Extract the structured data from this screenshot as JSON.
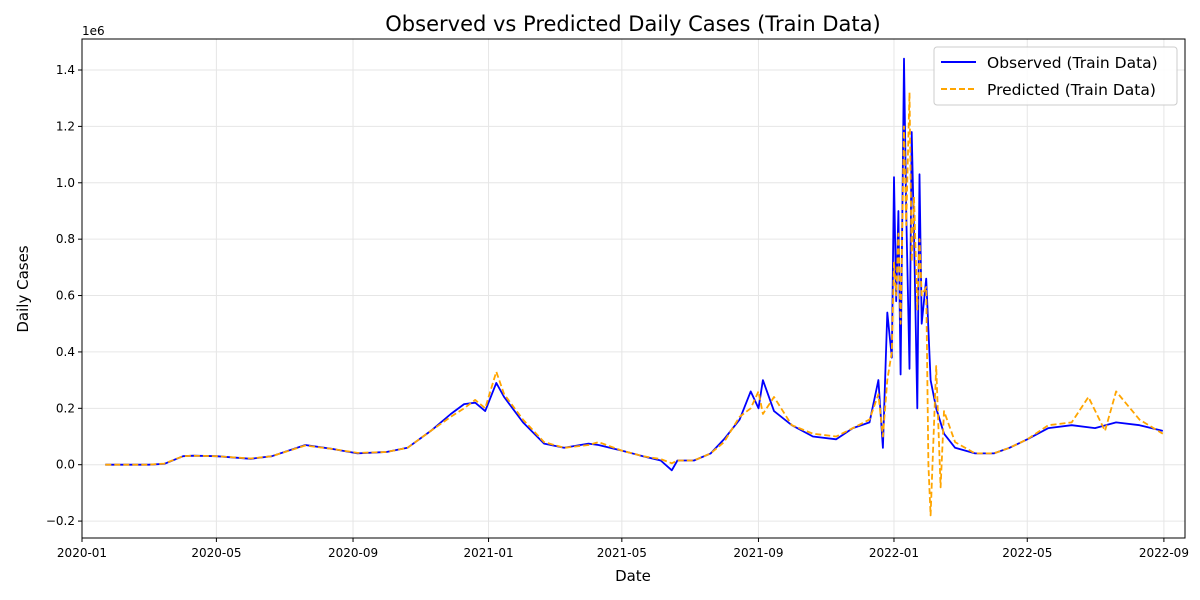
{
  "chart_data": {
    "type": "line",
    "title": "Observed vs Predicted Daily Cases (Train Data)",
    "xlabel": "Date",
    "ylabel": "Daily Cases",
    "y_offset_label": "1e6",
    "x_ticks": [
      "2020-01",
      "2020-05",
      "2020-09",
      "2021-01",
      "2021-05",
      "2021-09",
      "2022-01",
      "2022-05",
      "2022-09"
    ],
    "y_ticks": [
      -0.2,
      0.0,
      0.2,
      0.4,
      0.6,
      0.8,
      1.0,
      1.2,
      1.4
    ],
    "y_tick_labels": [
      "−0.2",
      "0.0",
      "0.2",
      "0.4",
      "0.6",
      "0.8",
      "1.0",
      "1.2",
      "1.4"
    ],
    "ylim": [
      -0.26,
      1.51
    ],
    "xlim": [
      "2020-01-01",
      "2022-09-20"
    ],
    "grid": true,
    "legend_position": "top-right",
    "colors": {
      "observed": "#0000ff",
      "predicted": "#ffa500"
    },
    "series": [
      {
        "name": "Observed (Train Data)",
        "style": "solid",
        "points": [
          [
            "2020-01-22",
            0.0
          ],
          [
            "2020-03-01",
            0.0
          ],
          [
            "2020-03-15",
            0.003
          ],
          [
            "2020-04-01",
            0.03
          ],
          [
            "2020-04-10",
            0.032
          ],
          [
            "2020-05-01",
            0.03
          ],
          [
            "2020-06-01",
            0.021
          ],
          [
            "2020-06-20",
            0.03
          ],
          [
            "2020-07-20",
            0.07
          ],
          [
            "2020-08-15",
            0.055
          ],
          [
            "2020-09-05",
            0.04
          ],
          [
            "2020-10-01",
            0.045
          ],
          [
            "2020-10-20",
            0.06
          ],
          [
            "2020-11-10",
            0.12
          ],
          [
            "2020-11-28",
            0.18
          ],
          [
            "2020-12-10",
            0.215
          ],
          [
            "2020-12-20",
            0.22
          ],
          [
            "2020-12-29",
            0.19
          ],
          [
            "2021-01-08",
            0.29
          ],
          [
            "2021-01-15",
            0.24
          ],
          [
            "2021-02-01",
            0.15
          ],
          [
            "2021-02-20",
            0.075
          ],
          [
            "2021-03-10",
            0.06
          ],
          [
            "2021-04-01",
            0.075
          ],
          [
            "2021-04-10",
            0.07
          ],
          [
            "2021-05-01",
            0.05
          ],
          [
            "2021-05-20",
            0.03
          ],
          [
            "2021-06-05",
            0.015
          ],
          [
            "2021-06-15",
            -0.02
          ],
          [
            "2021-06-20",
            0.015
          ],
          [
            "2021-07-05",
            0.015
          ],
          [
            "2021-07-20",
            0.04
          ],
          [
            "2021-08-01",
            0.09
          ],
          [
            "2021-08-15",
            0.16
          ],
          [
            "2021-08-25",
            0.26
          ],
          [
            "2021-09-01",
            0.2
          ],
          [
            "2021-09-05",
            0.3
          ],
          [
            "2021-09-15",
            0.19
          ],
          [
            "2021-10-01",
            0.14
          ],
          [
            "2021-10-20",
            0.1
          ],
          [
            "2021-11-10",
            0.09
          ],
          [
            "2021-11-25",
            0.13
          ],
          [
            "2021-12-10",
            0.15
          ],
          [
            "2021-12-18",
            0.3
          ],
          [
            "2021-12-22",
            0.06
          ],
          [
            "2021-12-26",
            0.54
          ],
          [
            "2021-12-30",
            0.38
          ],
          [
            "2022-01-01",
            1.02
          ],
          [
            "2022-01-03",
            0.58
          ],
          [
            "2022-01-05",
            0.9
          ],
          [
            "2022-01-07",
            0.32
          ],
          [
            "2022-01-10",
            1.44
          ],
          [
            "2022-01-12",
            0.9
          ],
          [
            "2022-01-15",
            0.34
          ],
          [
            "2022-01-17",
            1.18
          ],
          [
            "2022-01-19",
            0.82
          ],
          [
            "2022-01-22",
            0.2
          ],
          [
            "2022-01-24",
            1.03
          ],
          [
            "2022-01-26",
            0.5
          ],
          [
            "2022-01-30",
            0.66
          ],
          [
            "2022-02-03",
            0.3
          ],
          [
            "2022-02-08",
            0.2
          ],
          [
            "2022-02-15",
            0.11
          ],
          [
            "2022-02-25",
            0.06
          ],
          [
            "2022-03-15",
            0.04
          ],
          [
            "2022-04-01",
            0.04
          ],
          [
            "2022-04-15",
            0.06
          ],
          [
            "2022-05-01",
            0.09
          ],
          [
            "2022-05-20",
            0.13
          ],
          [
            "2022-06-10",
            0.14
          ],
          [
            "2022-07-01",
            0.13
          ],
          [
            "2022-07-20",
            0.15
          ],
          [
            "2022-08-10",
            0.14
          ],
          [
            "2022-08-31",
            0.12
          ]
        ]
      },
      {
        "name": "Predicted (Train Data)",
        "style": "dashed",
        "points": [
          [
            "2020-01-22",
            0.0
          ],
          [
            "2020-03-01",
            0.0
          ],
          [
            "2020-03-15",
            0.004
          ],
          [
            "2020-04-01",
            0.03
          ],
          [
            "2020-04-10",
            0.032
          ],
          [
            "2020-05-01",
            0.03
          ],
          [
            "2020-06-01",
            0.022
          ],
          [
            "2020-06-20",
            0.03
          ],
          [
            "2020-07-20",
            0.068
          ],
          [
            "2020-08-15",
            0.055
          ],
          [
            "2020-09-05",
            0.042
          ],
          [
            "2020-10-01",
            0.045
          ],
          [
            "2020-10-20",
            0.06
          ],
          [
            "2020-11-10",
            0.12
          ],
          [
            "2020-11-28",
            0.17
          ],
          [
            "2020-12-10",
            0.2
          ],
          [
            "2020-12-20",
            0.23
          ],
          [
            "2020-12-29",
            0.2
          ],
          [
            "2021-01-08",
            0.33
          ],
          [
            "2021-01-15",
            0.25
          ],
          [
            "2021-02-01",
            0.16
          ],
          [
            "2021-02-20",
            0.08
          ],
          [
            "2021-03-10",
            0.06
          ],
          [
            "2021-04-01",
            0.07
          ],
          [
            "2021-04-10",
            0.08
          ],
          [
            "2021-05-01",
            0.05
          ],
          [
            "2021-05-20",
            0.03
          ],
          [
            "2021-06-05",
            0.02
          ],
          [
            "2021-06-15",
            0.005
          ],
          [
            "2021-06-20",
            0.015
          ],
          [
            "2021-07-05",
            0.015
          ],
          [
            "2021-07-20",
            0.04
          ],
          [
            "2021-08-01",
            0.08
          ],
          [
            "2021-08-15",
            0.17
          ],
          [
            "2021-08-25",
            0.2
          ],
          [
            "2021-09-01",
            0.26
          ],
          [
            "2021-09-05",
            0.18
          ],
          [
            "2021-09-15",
            0.24
          ],
          [
            "2021-10-01",
            0.14
          ],
          [
            "2021-10-20",
            0.11
          ],
          [
            "2021-11-10",
            0.1
          ],
          [
            "2021-11-25",
            0.13
          ],
          [
            "2021-12-10",
            0.16
          ],
          [
            "2021-12-18",
            0.25
          ],
          [
            "2021-12-22",
            0.1
          ],
          [
            "2021-12-26",
            0.3
          ],
          [
            "2021-12-30",
            0.4
          ],
          [
            "2022-01-01",
            0.72
          ],
          [
            "2022-01-03",
            0.6
          ],
          [
            "2022-01-05",
            0.82
          ],
          [
            "2022-01-07",
            0.5
          ],
          [
            "2022-01-10",
            1.2
          ],
          [
            "2022-01-12",
            0.85
          ],
          [
            "2022-01-15",
            1.32
          ],
          [
            "2022-01-17",
            0.72
          ],
          [
            "2022-01-19",
            0.95
          ],
          [
            "2022-01-22",
            0.55
          ],
          [
            "2022-01-24",
            0.8
          ],
          [
            "2022-01-26",
            0.6
          ],
          [
            "2022-01-30",
            0.63
          ],
          [
            "2022-02-01",
            0.0
          ],
          [
            "2022-02-03",
            -0.18
          ],
          [
            "2022-02-08",
            0.35
          ],
          [
            "2022-02-12",
            -0.08
          ],
          [
            "2022-02-15",
            0.19
          ],
          [
            "2022-02-25",
            0.08
          ],
          [
            "2022-03-15",
            0.04
          ],
          [
            "2022-04-01",
            0.04
          ],
          [
            "2022-04-15",
            0.06
          ],
          [
            "2022-05-01",
            0.09
          ],
          [
            "2022-05-20",
            0.14
          ],
          [
            "2022-06-10",
            0.15
          ],
          [
            "2022-06-25",
            0.24
          ],
          [
            "2022-07-10",
            0.12
          ],
          [
            "2022-07-20",
            0.26
          ],
          [
            "2022-08-10",
            0.16
          ],
          [
            "2022-08-31",
            0.11
          ]
        ]
      }
    ]
  }
}
